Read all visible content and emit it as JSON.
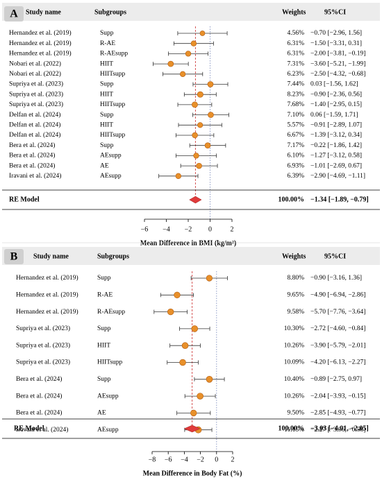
{
  "chart_data": [
    {
      "type": "forest",
      "panel": "A",
      "headers": {
        "study": "Study name",
        "subgroup": "Subgroups",
        "weights": "Weights",
        "ci": "95%CI"
      },
      "studies": [
        {
          "study": "Hernandez et al. (2019)",
          "subgroup": "Supp",
          "weight": "4.56%",
          "md": -0.7,
          "lo": -2.96,
          "hi": 1.56,
          "ci": "−0.70 [−2.96, 1.56]"
        },
        {
          "study": "Hernandez et al. (2019)",
          "subgroup": "R-AE",
          "weight": "6.31%",
          "md": -1.5,
          "lo": -3.31,
          "hi": 0.31,
          "ci": "−1.50 [−3.31, 0.31]"
        },
        {
          "study": "Hernandez et al. (2019)",
          "subgroup": "R-AEsupp",
          "weight": "6.31%",
          "md": -2.0,
          "lo": -3.81,
          "hi": -0.19,
          "ci": "−2.00 [−3.81, −0.19]"
        },
        {
          "study": "Nobari et al. (2022)",
          "subgroup": "HIIT",
          "weight": "7.31%",
          "md": -3.6,
          "lo": -5.21,
          "hi": -1.99,
          "ci": "−3.60 [−5.21, −1.99]"
        },
        {
          "study": "Nobari et al. (2022)",
          "subgroup": "HIITsupp",
          "weight": "6.23%",
          "md": -2.5,
          "lo": -4.32,
          "hi": -0.68,
          "ci": "−2.50 [−4.32, −0.68]"
        },
        {
          "study": "Supriya et al. (2023)",
          "subgroup": "Supp",
          "weight": "7.44%",
          "md": 0.03,
          "lo": -1.56,
          "hi": 1.62,
          "ci": "0.03 [−1.56, 1.62]"
        },
        {
          "study": "Supriya et al. (2023)",
          "subgroup": "HIIT",
          "weight": "8.23%",
          "md": -0.9,
          "lo": -2.36,
          "hi": 0.56,
          "ci": "−0.90 [−2.36, 0.56]"
        },
        {
          "study": "Supriya et al. (2023)",
          "subgroup": "HIITsupp",
          "weight": "7.68%",
          "md": -1.4,
          "lo": -2.95,
          "hi": 0.15,
          "ci": "−1.40 [−2.95, 0.15]"
        },
        {
          "study": "Delfan et al. (2024)",
          "subgroup": "Supp",
          "weight": "7.10%",
          "md": 0.06,
          "lo": -1.59,
          "hi": 1.71,
          "ci": "0.06 [−1.59, 1.71]"
        },
        {
          "study": "Delfan et al. (2024)",
          "subgroup": "HIIT",
          "weight": "5.57%",
          "md": -0.91,
          "lo": -2.89,
          "hi": 1.07,
          "ci": "−0.91 [−2.89, 1.07]"
        },
        {
          "study": "Delfan et al. (2024)",
          "subgroup": "HIITsupp",
          "weight": "6.67%",
          "md": -1.39,
          "lo": -3.12,
          "hi": 0.34,
          "ci": "−1.39 [−3.12, 0.34]"
        },
        {
          "study": "Bera et al. (2024)",
          "subgroup": "Supp",
          "weight": "7.17%",
          "md": -0.22,
          "lo": -1.86,
          "hi": 1.42,
          "ci": "−0.22 [−1.86, 1.42]"
        },
        {
          "study": "Bera et al. (2024)",
          "subgroup": "AEsupp",
          "weight": "6.10%",
          "md": -1.27,
          "lo": -3.12,
          "hi": 0.58,
          "ci": "−1.27 [−3.12, 0.58]"
        },
        {
          "study": "Bera et al. (2024)",
          "subgroup": "AE",
          "weight": "6.93%",
          "md": -1.01,
          "lo": -2.69,
          "hi": 0.67,
          "ci": "−1.01 [−2.69, 0.67]"
        },
        {
          "study": "Iravani et al. (2024)",
          "subgroup": "AEsupp",
          "weight": "6.39%",
          "md": -2.9,
          "lo": -4.69,
          "hi": -1.11,
          "ci": "−2.90 [−4.69, −1.11]"
        }
      ],
      "summary": {
        "label": "RE Model",
        "weight": "100.00%",
        "md": -1.34,
        "lo": -1.89,
        "hi": -0.79,
        "ci": "−1.34 [−1.89, −0.79]"
      },
      "xlabel": "Mean Difference in BMI (kg/m²)",
      "xlim": [
        -6,
        2
      ],
      "xticks": [
        -6,
        -4,
        -2,
        0,
        2
      ],
      "xtick_labels": [
        "−6",
        "−4",
        "−2",
        "0",
        "2"
      ],
      "colors": {
        "marker": "#e8902a",
        "marker_edge": "#b05a10",
        "summary": "#e03a3a",
        "pooled_line": "#d04040",
        "zero_line": "#8090c0"
      }
    },
    {
      "type": "forest",
      "panel": "B",
      "headers": {
        "study": "Study name",
        "subgroup": "Subgroups",
        "weights": "Weights",
        "ci": "95%CI"
      },
      "studies": [
        {
          "study": "Hernandez et al. (2019)",
          "subgroup": "Supp",
          "weight": "8.80%",
          "md": -0.9,
          "lo": -3.16,
          "hi": 1.36,
          "ci": "−0.90 [−3.16, 1.36]"
        },
        {
          "study": "Hernandez et al. (2019)",
          "subgroup": "R-AE",
          "weight": "9.65%",
          "md": -4.9,
          "lo": -6.94,
          "hi": -2.86,
          "ci": "−4.90 [−6.94, −2.86]"
        },
        {
          "study": "Hernandez et al. (2019)",
          "subgroup": "R-AEsupp",
          "weight": "9.58%",
          "md": -5.7,
          "lo": -7.76,
          "hi": -3.64,
          "ci": "−5.70 [−7.76, −3.64]"
        },
        {
          "study": "Supriya et al. (2023)",
          "subgroup": "Supp",
          "weight": "10.30%",
          "md": -2.72,
          "lo": -4.6,
          "hi": -0.84,
          "ci": "−2.72 [−4.60, −0.84]"
        },
        {
          "study": "Supriya et al. (2023)",
          "subgroup": "HIIT",
          "weight": "10.26%",
          "md": -3.9,
          "lo": -5.79,
          "hi": -2.01,
          "ci": "−3.90 [−5.79, −2.01]"
        },
        {
          "study": "Supriya et al. (2023)",
          "subgroup": "HIITsupp",
          "weight": "10.09%",
          "md": -4.2,
          "lo": -6.13,
          "hi": -2.27,
          "ci": "−4.20 [−6.13, −2.27]"
        },
        {
          "study": "Bera et al. (2024)",
          "subgroup": "Supp",
          "weight": "10.40%",
          "md": -0.89,
          "lo": -2.75,
          "hi": 0.97,
          "ci": "−0.89 [−2.75, 0.97]"
        },
        {
          "study": "Bera et al. (2024)",
          "subgroup": "AEsupp",
          "weight": "10.26%",
          "md": -2.04,
          "lo": -3.93,
          "hi": -0.15,
          "ci": "−2.04 [−3.93, −0.15]"
        },
        {
          "study": "Bera et al. (2024)",
          "subgroup": "AE",
          "weight": "9.50%",
          "md": -2.85,
          "lo": -4.93,
          "hi": -0.77,
          "ci": "−2.85 [−4.93, −0.77]"
        },
        {
          "study": "Iravani et al. (2024)",
          "subgroup": "AEsupp",
          "weight": "11.15%",
          "md": -2.27,
          "lo": -3.96,
          "hi": -0.58,
          "ci": "−2.27 [−3.96, −0.58]"
        }
      ],
      "summary": {
        "label": "RE Model",
        "weight": "100.00%",
        "md": -3.03,
        "lo": -4.01,
        "hi": -2.05,
        "ci": "−3.03 [−4.01, −2.05]"
      },
      "xlabel": "Mean Difference in Body Fat (%)",
      "xlim": [
        -8,
        2
      ],
      "xticks": [
        -8,
        -6,
        -4,
        -2,
        0,
        2
      ],
      "xtick_labels": [
        "−8",
        "−6",
        "−4",
        "−2",
        "0",
        "2"
      ],
      "colors": {
        "marker": "#e8902a",
        "marker_edge": "#b05a10",
        "summary": "#e03a3a",
        "pooled_line": "#d04040",
        "zero_line": "#8090c0"
      }
    }
  ]
}
